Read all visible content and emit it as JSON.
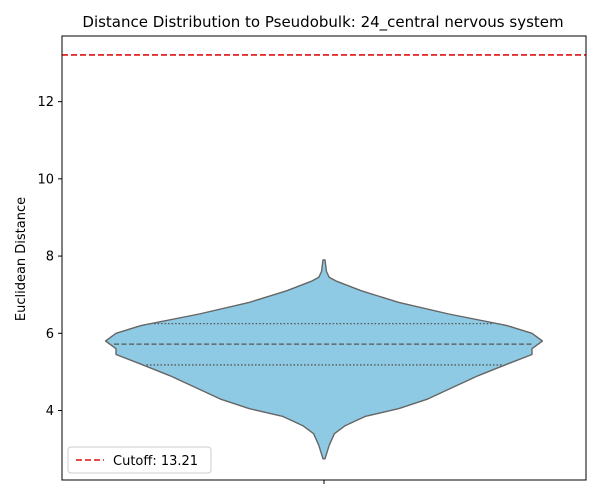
{
  "chart_data": {
    "type": "violin",
    "title": "Distance Distribution to Pseudobulk: 24_central nervous system",
    "xlabel": "",
    "ylabel": "Euclidean Distance",
    "ylim": [
      2.2,
      13.7
    ],
    "yticks": [
      4,
      6,
      8,
      10,
      12
    ],
    "grid": false,
    "violin": {
      "color": "#8ecae3",
      "edge_color": "#666666",
      "min": 2.75,
      "max": 7.9,
      "q1": 5.18,
      "median": 5.72,
      "q3": 6.25,
      "profile": [
        [
          2.75,
          0.005
        ],
        [
          3.1,
          0.025
        ],
        [
          3.4,
          0.05
        ],
        [
          3.6,
          0.1
        ],
        [
          3.85,
          0.2
        ],
        [
          4.05,
          0.36
        ],
        [
          4.3,
          0.5
        ],
        [
          4.6,
          0.62
        ],
        [
          4.9,
          0.74
        ],
        [
          5.2,
          0.88
        ],
        [
          5.45,
          1.0
        ],
        [
          5.6,
          1.0
        ],
        [
          5.8,
          1.05
        ],
        [
          6.0,
          1.0
        ],
        [
          6.2,
          0.88
        ],
        [
          6.5,
          0.6
        ],
        [
          6.8,
          0.36
        ],
        [
          7.1,
          0.18
        ],
        [
          7.35,
          0.06
        ],
        [
          7.45,
          0.025
        ],
        [
          7.6,
          0.012
        ],
        [
          7.9,
          0.005
        ]
      ]
    },
    "cutoff": {
      "value": 13.21,
      "color": "#dd1111",
      "label": "Cutoff: 13.21"
    },
    "legend": {
      "position": "lower-left"
    }
  }
}
